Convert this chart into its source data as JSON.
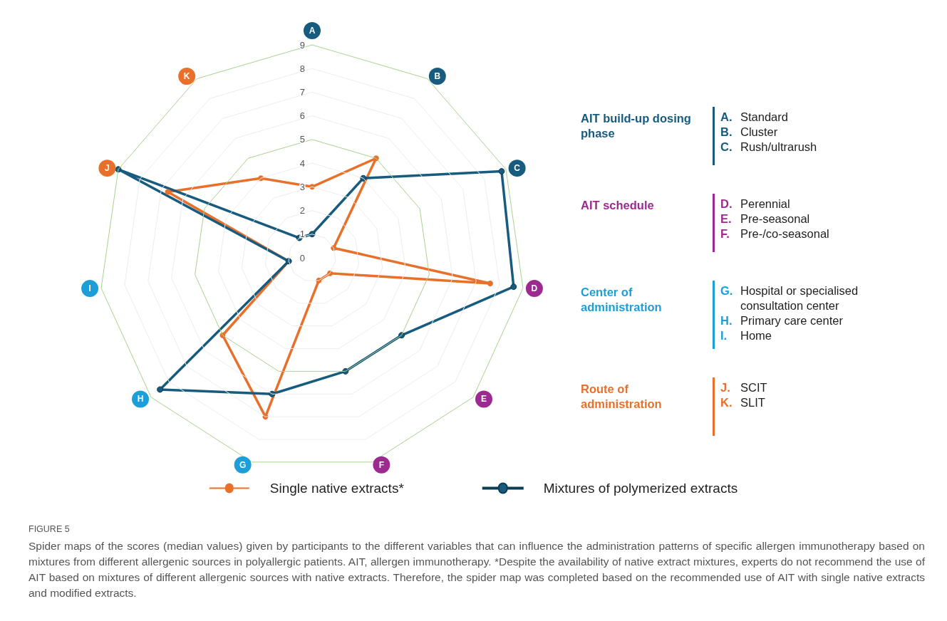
{
  "chart_data": [
    {
      "type": "radar",
      "categories": [
        "A",
        "B",
        "C",
        "D",
        "E",
        "F",
        "G",
        "H",
        "I",
        "J",
        "K"
      ],
      "colors": [
        "#175b7e",
        "#175b7e",
        "#175b7e",
        "#9c2a90",
        "#9c2a90",
        "#9c2a90",
        "#1c9fd8",
        "#1c9fd8",
        "#1c9fd8",
        "#e8702a",
        "#e8702a"
      ],
      "series": [
        {
          "name": "Single native extracts*",
          "color": "#e8702a",
          "values": [
            3,
            5,
            1,
            7.6,
            1,
            1,
            7,
            5,
            1,
            6.7,
            4
          ]
        },
        {
          "name": "Mixtures of polymerized extracts",
          "color": "#175b7e",
          "values": [
            1,
            4,
            8.8,
            8.6,
            5,
            5,
            6,
            8.5,
            1,
            9,
            1
          ]
        }
      ],
      "ylim": [
        0,
        9
      ],
      "yticks": [
        0,
        1,
        2,
        3,
        4,
        5,
        6,
        7,
        8,
        9
      ],
      "marker": "circle",
      "line_style": "solid",
      "legend": "bottom",
      "annotations": [
        "FIGURE 5",
        "Spider maps of the scores (median values) given by participants to the different variables that can influence the administration patterns of specific allergen immunotherapy based on mixtures from different allergenic sources in polyallergic patients. AIT, allergen immunotherapy. *Despite the availability of native extract mixtures, experts do not recommend the use of AIT based on mixtures of different allergenic sources with native extracts. Therefore, the spider map was completed based on the recommended use of AIT with single native extracts and modified extracts."
      ]
    },
    {
      "type": "other",
      "categories": [
        "AIT build-up dosing phase",
        "AIT schedule",
        "Center of administration",
        "Route of administration"
      ],
      "colors": [
        "#175b7e",
        "#9c2a90",
        "#1c9fd8",
        "#e8702a"
      ],
      "annotations": [
        "A. Standard",
        "B. Cluster",
        "C. Rush/ultrarush",
        "D. Perennial",
        "E. Pre-seasonal",
        "F. Pre-/co-seasonal",
        "G. Hospital or specialised consultation center",
        "H. Primary care center",
        "I. Home",
        "J. SCIT",
        "K. SLIT"
      ]
    }
  ]
}
